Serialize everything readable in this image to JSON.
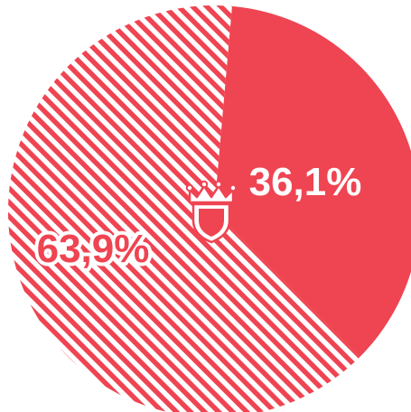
{
  "chart_data": {
    "type": "pie",
    "values": [
      36.1,
      63.9
    ],
    "labels": [
      "36,1%",
      "63,9%"
    ],
    "slice_styles": [
      "solid",
      "hatched"
    ],
    "start_angle_deg": 5,
    "direction": "clockwise",
    "center_icon": "crown-shield-icon"
  },
  "colors": {
    "accent": "#ef4452",
    "background": "#ffffff"
  }
}
